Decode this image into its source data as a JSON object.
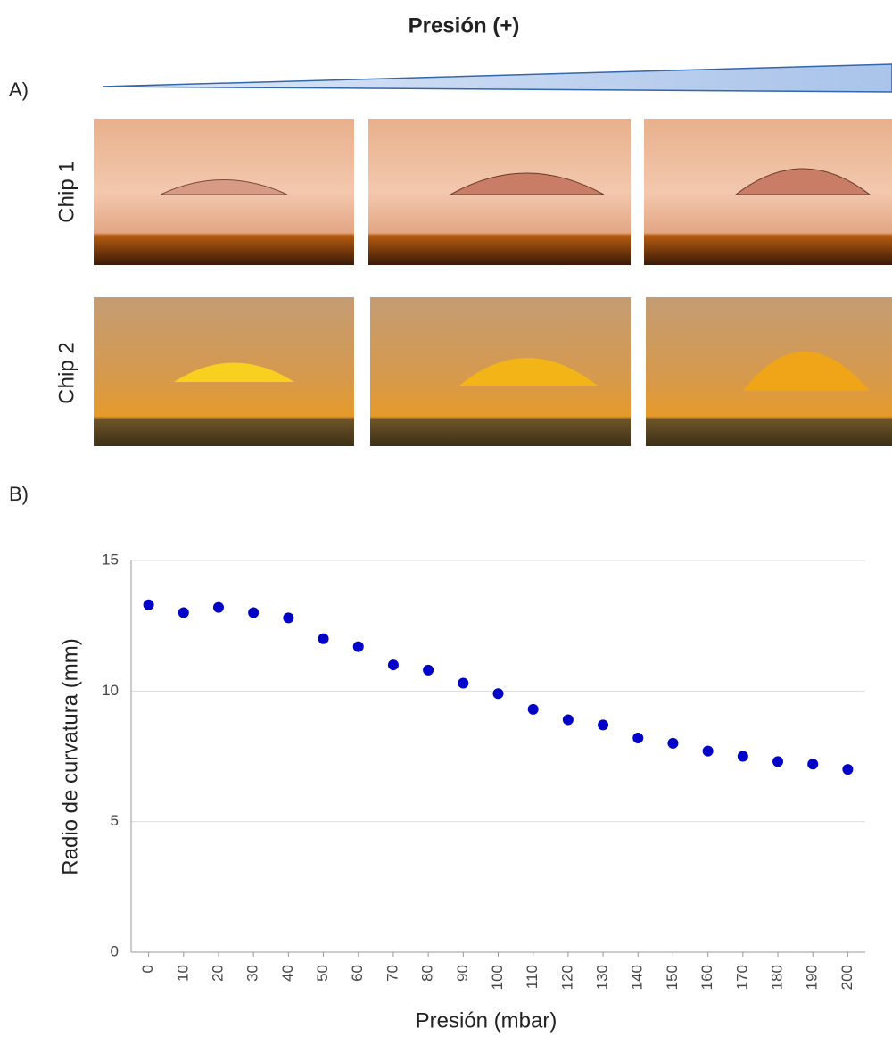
{
  "figure": {
    "title": "Presión (+)",
    "panel_a": "A)",
    "panel_b": "B)",
    "rows": [
      "Chip 1",
      "Chip 2"
    ]
  },
  "chart_data": {
    "type": "scatter",
    "x_label": "Presión (mbar)",
    "y_label": "Radio de curvatura (mm)",
    "x": [
      0,
      10,
      20,
      30,
      40,
      50,
      60,
      70,
      80,
      90,
      100,
      110,
      120,
      130,
      140,
      150,
      160,
      170,
      180,
      190,
      200
    ],
    "series": [
      {
        "color": "#0000c8",
        "values": [
          13.3,
          13.0,
          13.2,
          13.0,
          12.8,
          12.0,
          11.7,
          11.0,
          10.8,
          10.3,
          9.9,
          9.3,
          8.9,
          8.7,
          8.2,
          8.0,
          7.7,
          7.5,
          7.3,
          7.2,
          7.0
        ]
      }
    ],
    "xlim": [
      -5,
      205
    ],
    "xticks": [
      0,
      10,
      20,
      30,
      40,
      50,
      60,
      70,
      80,
      90,
      100,
      110,
      120,
      130,
      140,
      150,
      160,
      170,
      180,
      190,
      200
    ],
    "ylim": [
      0,
      15
    ],
    "yticks": [
      0,
      5,
      10,
      15
    ],
    "grid": true
  }
}
